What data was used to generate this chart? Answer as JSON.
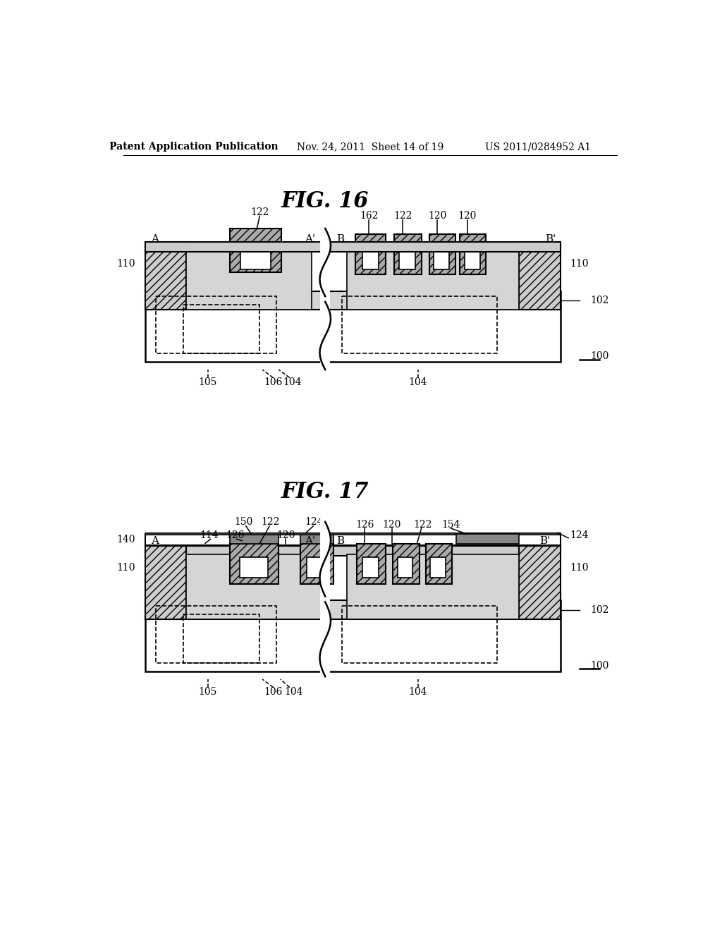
{
  "header_left": "Patent Application Publication",
  "header_mid": "Nov. 24, 2011  Sheet 14 of 19",
  "header_right": "US 2011/0284952 A1",
  "fig16_title": "FIG. 16",
  "fig17_title": "FIG. 17",
  "bg_color": "#ffffff",
  "line_color": "#000000",
  "hatch_color": "#000000",
  "gray_fill": "#c8c8c8",
  "dark_fill": "#888888",
  "white_fill": "#ffffff"
}
